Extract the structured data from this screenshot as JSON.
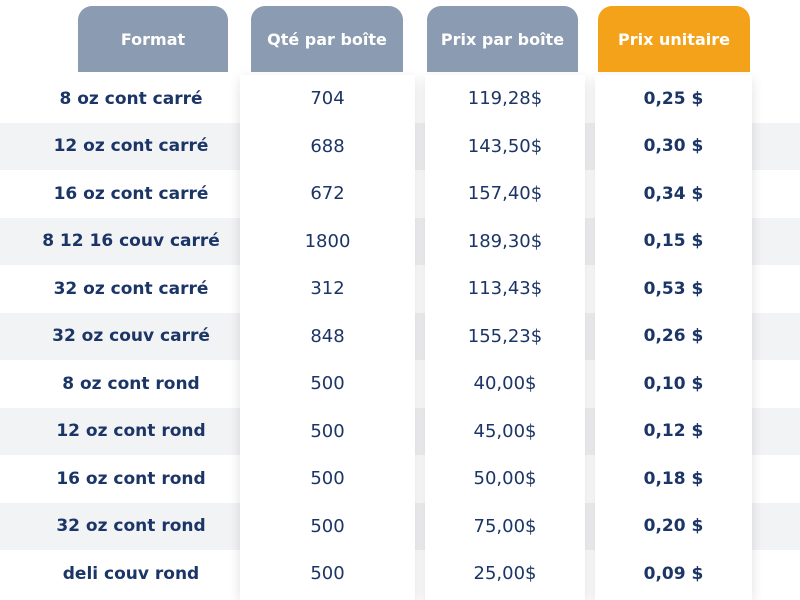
{
  "header": {
    "columns": [
      "Format",
      "Qté par boîte",
      "Prix par boîte",
      "Prix unitaire"
    ]
  },
  "table": {
    "rows": [
      [
        "8 oz cont carré",
        "704",
        "119,28$",
        "0,25 $"
      ],
      [
        "12 oz cont carré",
        "688",
        "143,50$",
        "0,30 $"
      ],
      [
        "16 oz cont carré",
        "672",
        "157,40$",
        "0,34 $"
      ],
      [
        "8 12 16 couv carré",
        "1800",
        "189,30$",
        "0,15 $"
      ],
      [
        "32 oz cont carré",
        "312",
        "113,43$",
        "0,53 $"
      ],
      [
        "32 oz couv carré",
        "848",
        "155,23$",
        "0,26 $"
      ],
      [
        "8 oz cont rond",
        "500",
        "40,00$",
        "0,10 $"
      ],
      [
        "12 oz cont rond",
        "500",
        "45,00$",
        "0,12 $"
      ],
      [
        "16 oz cont rond",
        "500",
        "50,00$",
        "0,18 $"
      ],
      [
        "32 oz cont rond",
        "500",
        "75,00$",
        "0,20 $"
      ],
      [
        "deli couv rond",
        "500",
        "25,00$",
        "0,09 $"
      ]
    ]
  }
}
